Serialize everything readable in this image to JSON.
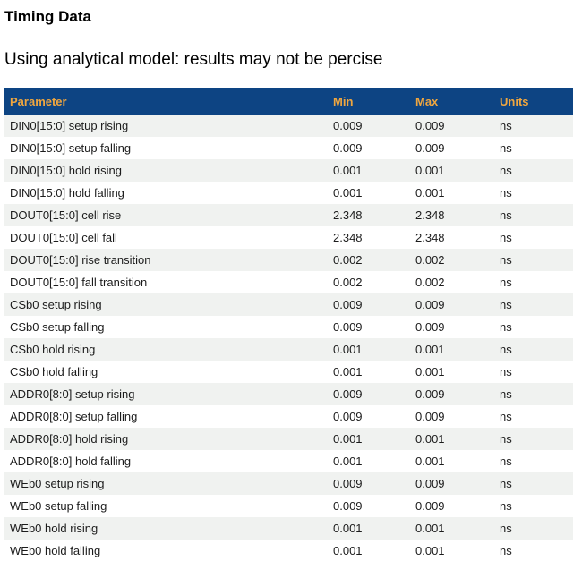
{
  "page": {
    "title": "Timing Data",
    "subtitle": "Using analytical model: results may not be percise"
  },
  "table": {
    "columns": [
      "Parameter",
      "Min",
      "Max",
      "Units"
    ],
    "rows": [
      {
        "parameter": "DIN0[15:0] setup rising",
        "min": "0.009",
        "max": "0.009",
        "units": "ns"
      },
      {
        "parameter": "DIN0[15:0] setup falling",
        "min": "0.009",
        "max": "0.009",
        "units": "ns"
      },
      {
        "parameter": "DIN0[15:0] hold rising",
        "min": "0.001",
        "max": "0.001",
        "units": "ns"
      },
      {
        "parameter": "DIN0[15:0] hold falling",
        "min": "0.001",
        "max": "0.001",
        "units": "ns"
      },
      {
        "parameter": "DOUT0[15:0] cell rise",
        "min": "2.348",
        "max": "2.348",
        "units": "ns"
      },
      {
        "parameter": "DOUT0[15:0] cell fall",
        "min": "2.348",
        "max": "2.348",
        "units": "ns"
      },
      {
        "parameter": "DOUT0[15:0] rise transition",
        "min": "0.002",
        "max": "0.002",
        "units": "ns"
      },
      {
        "parameter": "DOUT0[15:0] fall transition",
        "min": "0.002",
        "max": "0.002",
        "units": "ns"
      },
      {
        "parameter": "CSb0 setup rising",
        "min": "0.009",
        "max": "0.009",
        "units": "ns"
      },
      {
        "parameter": "CSb0 setup falling",
        "min": "0.009",
        "max": "0.009",
        "units": "ns"
      },
      {
        "parameter": "CSb0 hold rising",
        "min": "0.001",
        "max": "0.001",
        "units": "ns"
      },
      {
        "parameter": "CSb0 hold falling",
        "min": "0.001",
        "max": "0.001",
        "units": "ns"
      },
      {
        "parameter": "ADDR0[8:0] setup rising",
        "min": "0.009",
        "max": "0.009",
        "units": "ns"
      },
      {
        "parameter": "ADDR0[8:0] setup falling",
        "min": "0.009",
        "max": "0.009",
        "units": "ns"
      },
      {
        "parameter": "ADDR0[8:0] hold rising",
        "min": "0.001",
        "max": "0.001",
        "units": "ns"
      },
      {
        "parameter": "ADDR0[8:0] hold falling",
        "min": "0.001",
        "max": "0.001",
        "units": "ns"
      },
      {
        "parameter": "WEb0 setup rising",
        "min": "0.009",
        "max": "0.009",
        "units": "ns"
      },
      {
        "parameter": "WEb0 setup falling",
        "min": "0.009",
        "max": "0.009",
        "units": "ns"
      },
      {
        "parameter": "WEb0 hold rising",
        "min": "0.001",
        "max": "0.001",
        "units": "ns"
      },
      {
        "parameter": "WEb0 hold falling",
        "min": "0.001",
        "max": "0.001",
        "units": "ns"
      }
    ]
  },
  "colors": {
    "header_bg": "#0d4483",
    "header_text": "#efa63f",
    "row_alt_bg": "#f0f2f0",
    "body_text": "#1c1c1c"
  }
}
